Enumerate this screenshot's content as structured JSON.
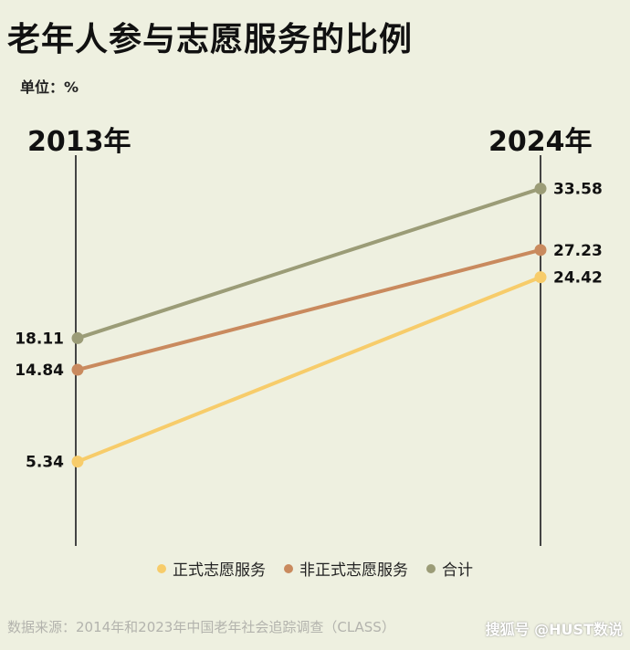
{
  "title": "老年人参与志愿服务的比例",
  "unit_label": "单位：%",
  "source": "数据来源：2014年和2023年中国老年社会追踪调查（CLASS）",
  "watermark": "搜狐号 @HUST数说",
  "chart_data": {
    "type": "line",
    "categories": [
      "2013年",
      "2024年"
    ],
    "series": [
      {
        "name": "正式志愿服务",
        "values": [
          5.34,
          24.42
        ],
        "labels": [
          "5.34",
          "24.42"
        ],
        "color": "#f7cc6a"
      },
      {
        "name": "非正式志愿服务",
        "values": [
          14.84,
          27.23
        ],
        "labels": [
          "14.84",
          "27.23"
        ],
        "color": "#c98a5e"
      },
      {
        "name": "合计",
        "values": [
          18.11,
          33.58
        ],
        "labels": [
          "18.11",
          "33.58"
        ],
        "color": "#9b9c77"
      }
    ],
    "legend_position": "bottom"
  }
}
